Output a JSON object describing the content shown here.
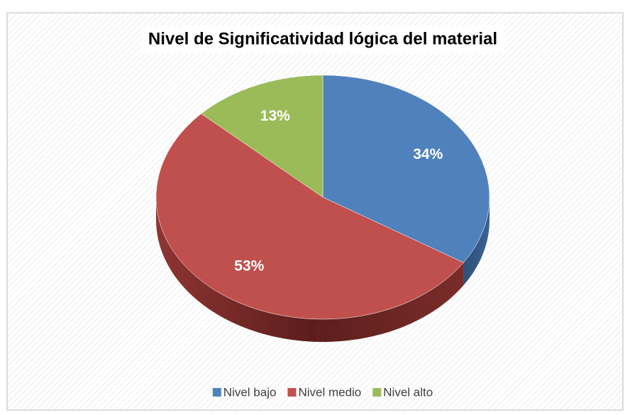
{
  "chart_data": {
    "type": "pie",
    "title": "Nivel de Significatividad lógica del material",
    "categories": [
      "Nivel bajo",
      "Nivel medio",
      "Nivel alto"
    ],
    "values": [
      34,
      53,
      13
    ],
    "value_labels": [
      "34%",
      "53%",
      "13%"
    ],
    "colors": [
      "#4f81bd",
      "#c0504d",
      "#9bbb59"
    ],
    "legend": "bottom"
  }
}
